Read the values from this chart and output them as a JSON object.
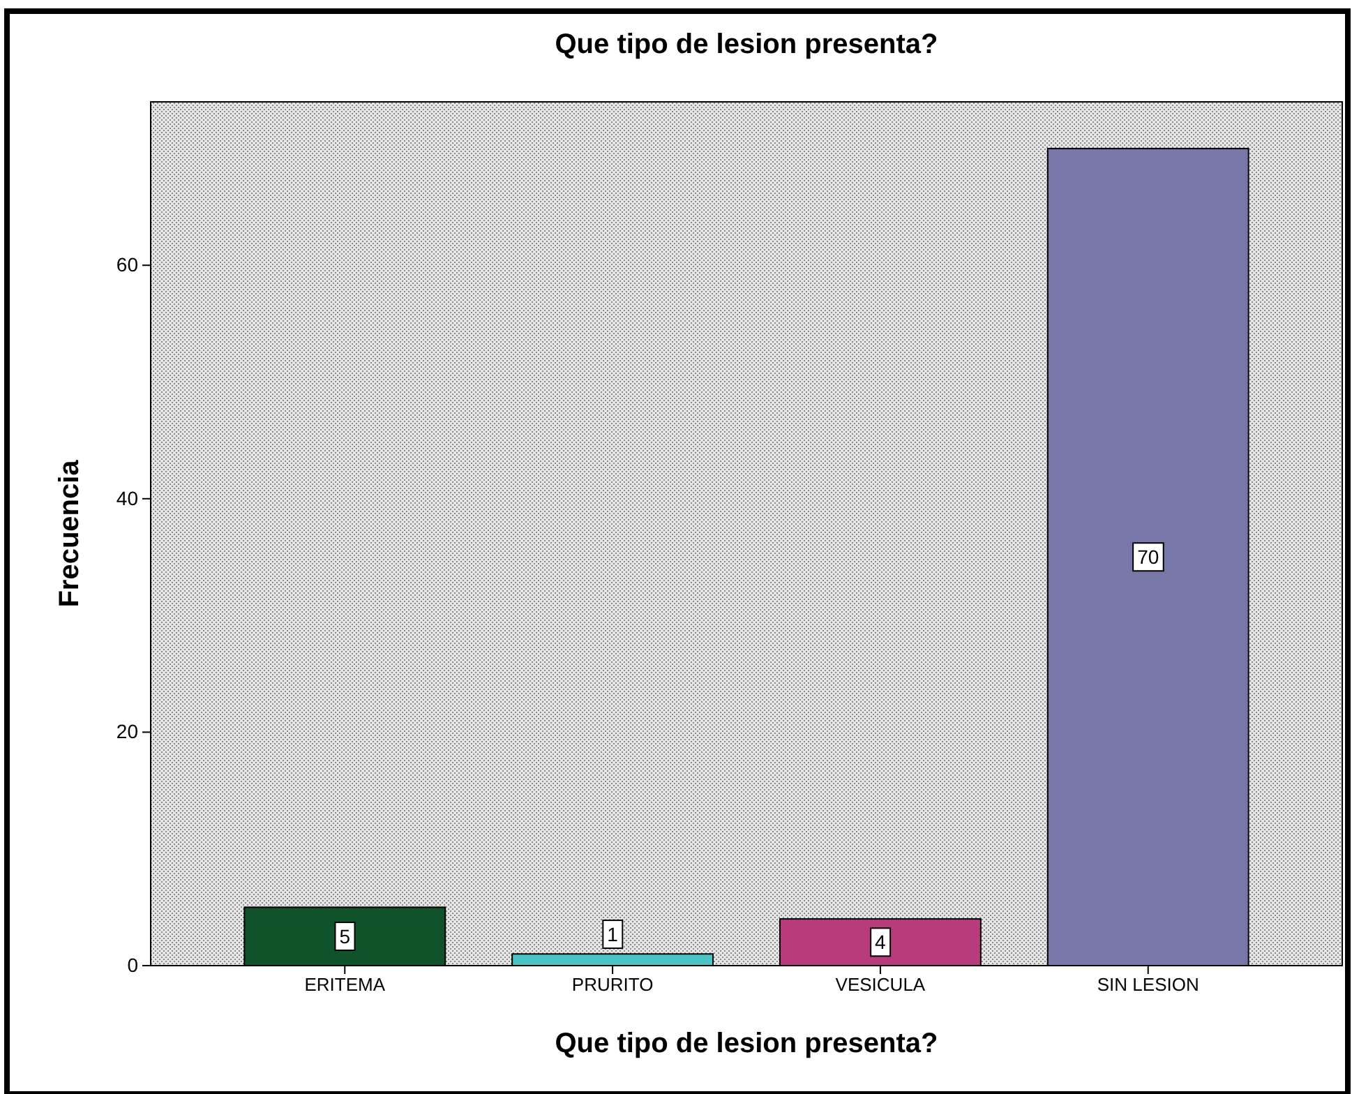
{
  "chart_data": {
    "type": "bar",
    "title": "Que tipo de lesion presenta?",
    "xlabel": "Que tipo de lesion presenta?",
    "ylabel": "Frecuencia",
    "categories": [
      "ERITEMA",
      "PRURITO",
      "VESICULA",
      "SIN LESION"
    ],
    "values": [
      5,
      1,
      4,
      70
    ],
    "colors": [
      "#10522b",
      "#4bc4c4",
      "#b83c7c",
      "#7878a8"
    ],
    "ylim": [
      0,
      74
    ],
    "yticks": [
      0,
      20,
      40,
      60
    ],
    "grid": false,
    "data_labels": true
  }
}
